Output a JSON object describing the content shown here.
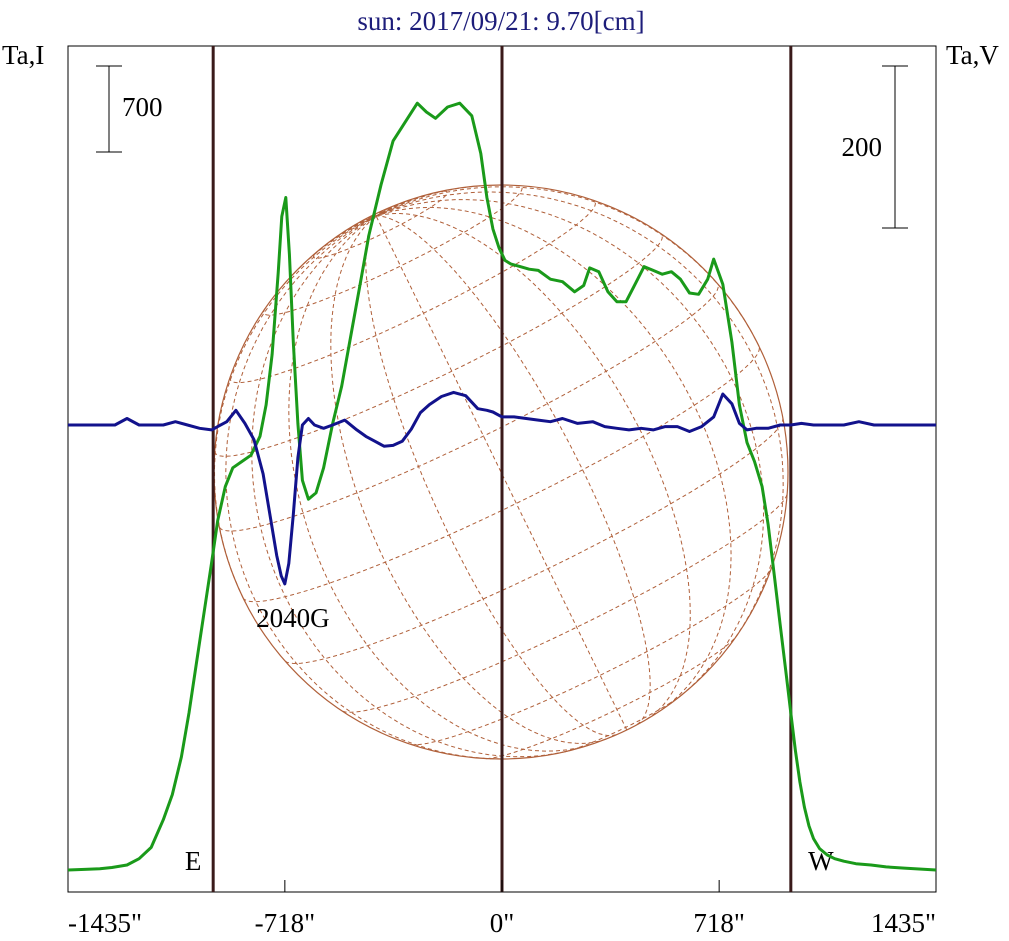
{
  "chart_data": {
    "type": "line",
    "title": "sun: 2017/09/21: 9.70[cm]",
    "left_axis_label": "Ta,I",
    "right_axis_label": "Ta,V",
    "x_unit": "arcsec",
    "xlim": [
      -1435,
      1435
    ],
    "x_ticks": [
      {
        "value": -1435,
        "label": "-1435\""
      },
      {
        "value": -718,
        "label": "-718\""
      },
      {
        "value": 0,
        "label": "0\""
      },
      {
        "value": 718,
        "label": "718\""
      },
      {
        "value": 1435,
        "label": "1435\""
      }
    ],
    "limb_markers": [
      {
        "value": -955,
        "label": "E"
      },
      {
        "value": 0,
        "label": ""
      },
      {
        "value": 955,
        "label": "W"
      }
    ],
    "scale_bars": [
      {
        "side": "left",
        "value_label": "700"
      },
      {
        "side": "right",
        "value_label": "200"
      }
    ],
    "annotations": [
      {
        "text": "2040G",
        "x": -718
      }
    ],
    "series": [
      {
        "key": "I",
        "color": "#1a9a1a",
        "axis": "left",
        "x": [
          -1435,
          -1380,
          -1330,
          -1290,
          -1240,
          -1200,
          -1160,
          -1120,
          -1090,
          -1060,
          -1035,
          -1010,
          -985,
          -960,
          -940,
          -915,
          -890,
          -860,
          -830,
          -800,
          -780,
          -760,
          -740,
          -728,
          -715,
          -703,
          -690,
          -675,
          -660,
          -640,
          -615,
          -590,
          -560,
          -530,
          -500,
          -470,
          -440,
          -400,
          -360,
          -320,
          -280,
          -250,
          -220,
          -180,
          -140,
          -100,
          -70,
          -50,
          -30,
          -10,
          10,
          30,
          60,
          90,
          120,
          160,
          200,
          240,
          270,
          290,
          320,
          350,
          380,
          410,
          440,
          470,
          500,
          530,
          560,
          590,
          620,
          650,
          680,
          700,
          730,
          760,
          785,
          810,
          835,
          860,
          880,
          900,
          920,
          940,
          955,
          970,
          985,
          1000,
          1015,
          1030,
          1050,
          1075,
          1100,
          1130,
          1170,
          1220,
          1270,
          1330,
          1400,
          1435
        ],
        "values": [
          0,
          5,
          10,
          20,
          40,
          90,
          180,
          400,
          600,
          900,
          1250,
          1650,
          2050,
          2450,
          2780,
          3050,
          3200,
          3250,
          3300,
          3450,
          3700,
          4100,
          4750,
          5200,
          5350,
          4900,
          4200,
          3550,
          3100,
          2950,
          3000,
          3200,
          3550,
          3850,
          4250,
          4650,
          5050,
          5450,
          5800,
          5950,
          6100,
          6030,
          5980,
          6070,
          6100,
          6000,
          5700,
          5350,
          5100,
          4950,
          4850,
          4820,
          4800,
          4780,
          4770,
          4700,
          4680,
          4600,
          4650,
          4790,
          4760,
          4600,
          4520,
          4520,
          4660,
          4800,
          4770,
          4740,
          4760,
          4700,
          4590,
          4580,
          4700,
          4860,
          4660,
          4200,
          3700,
          3400,
          3250,
          3050,
          2750,
          2350,
          1950,
          1550,
          1250,
          950,
          700,
          500,
          350,
          250,
          170,
          120,
          90,
          70,
          50,
          40,
          25,
          15,
          5,
          0
        ]
      },
      {
        "key": "V",
        "color": "#12128c",
        "axis": "right",
        "x": [
          -1435,
          -1380,
          -1330,
          -1280,
          -1240,
          -1200,
          -1160,
          -1120,
          -1080,
          -1040,
          -1000,
          -960,
          -940,
          -910,
          -880,
          -850,
          -820,
          -790,
          -765,
          -745,
          -730,
          -718,
          -705,
          -690,
          -675,
          -660,
          -640,
          -620,
          -590,
          -560,
          -520,
          -480,
          -450,
          -420,
          -390,
          -360,
          -330,
          -300,
          -270,
          -240,
          -200,
          -160,
          -120,
          -80,
          -50,
          -30,
          0,
          40,
          80,
          120,
          160,
          200,
          250,
          300,
          340,
          380,
          420,
          460,
          500,
          540,
          580,
          620,
          660,
          700,
          730,
          760,
          785,
          810,
          840,
          880,
          920,
          955,
          990,
          1030,
          1080,
          1130,
          1180,
          1230,
          1280,
          1330,
          1380,
          1435
        ],
        "values": [
          0,
          0,
          0,
          0,
          8,
          0,
          0,
          0,
          4,
          0,
          -4,
          -6,
          -2,
          4,
          18,
          2,
          -18,
          -60,
          -115,
          -160,
          -185,
          -195,
          -170,
          -110,
          -40,
          0,
          8,
          0,
          -4,
          0,
          6,
          -6,
          -14,
          -20,
          -26,
          -25,
          -20,
          -5,
          15,
          25,
          35,
          40,
          36,
          20,
          18,
          16,
          10,
          10,
          8,
          6,
          4,
          8,
          2,
          4,
          -2,
          -4,
          -6,
          -4,
          -6,
          -2,
          -2,
          -8,
          -2,
          10,
          38,
          26,
          2,
          -6,
          -4,
          -4,
          0,
          0,
          2,
          0,
          0,
          0,
          4,
          0,
          0,
          0,
          0,
          0
        ]
      }
    ]
  }
}
